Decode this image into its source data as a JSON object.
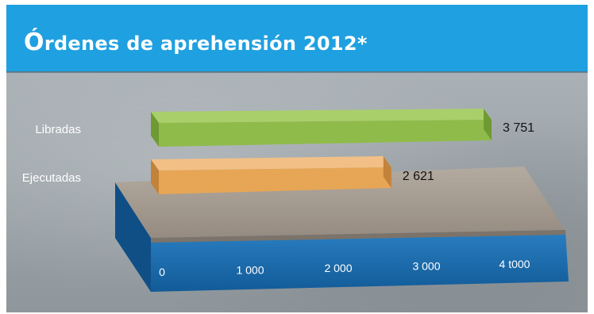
{
  "header": {
    "title_initial": "Ó",
    "title_rest": "rdenes de aprehensión 2012*"
  },
  "colors": {
    "header": "#1fa0e0",
    "libradas": "#8fbb4a",
    "ejecutadas": "#e7a655",
    "platform_top": "#9e958b",
    "platform_front": "#1c6fb3"
  },
  "chart_data": {
    "type": "bar",
    "orientation": "horizontal",
    "title": "Órdenes de aprehensión 2012*",
    "categories": [
      "Libradas",
      "Ejecutadas"
    ],
    "values": [
      3751,
      2621
    ],
    "value_labels": [
      "3 751",
      "2 621"
    ],
    "xlim": [
      0,
      4000
    ],
    "tick_values": [
      0,
      1000,
      2000,
      3000,
      4000
    ],
    "tick_labels": [
      "0",
      "1 000",
      "2 000",
      "3 000",
      "4 t000"
    ],
    "grid": false,
    "legend": "none"
  }
}
